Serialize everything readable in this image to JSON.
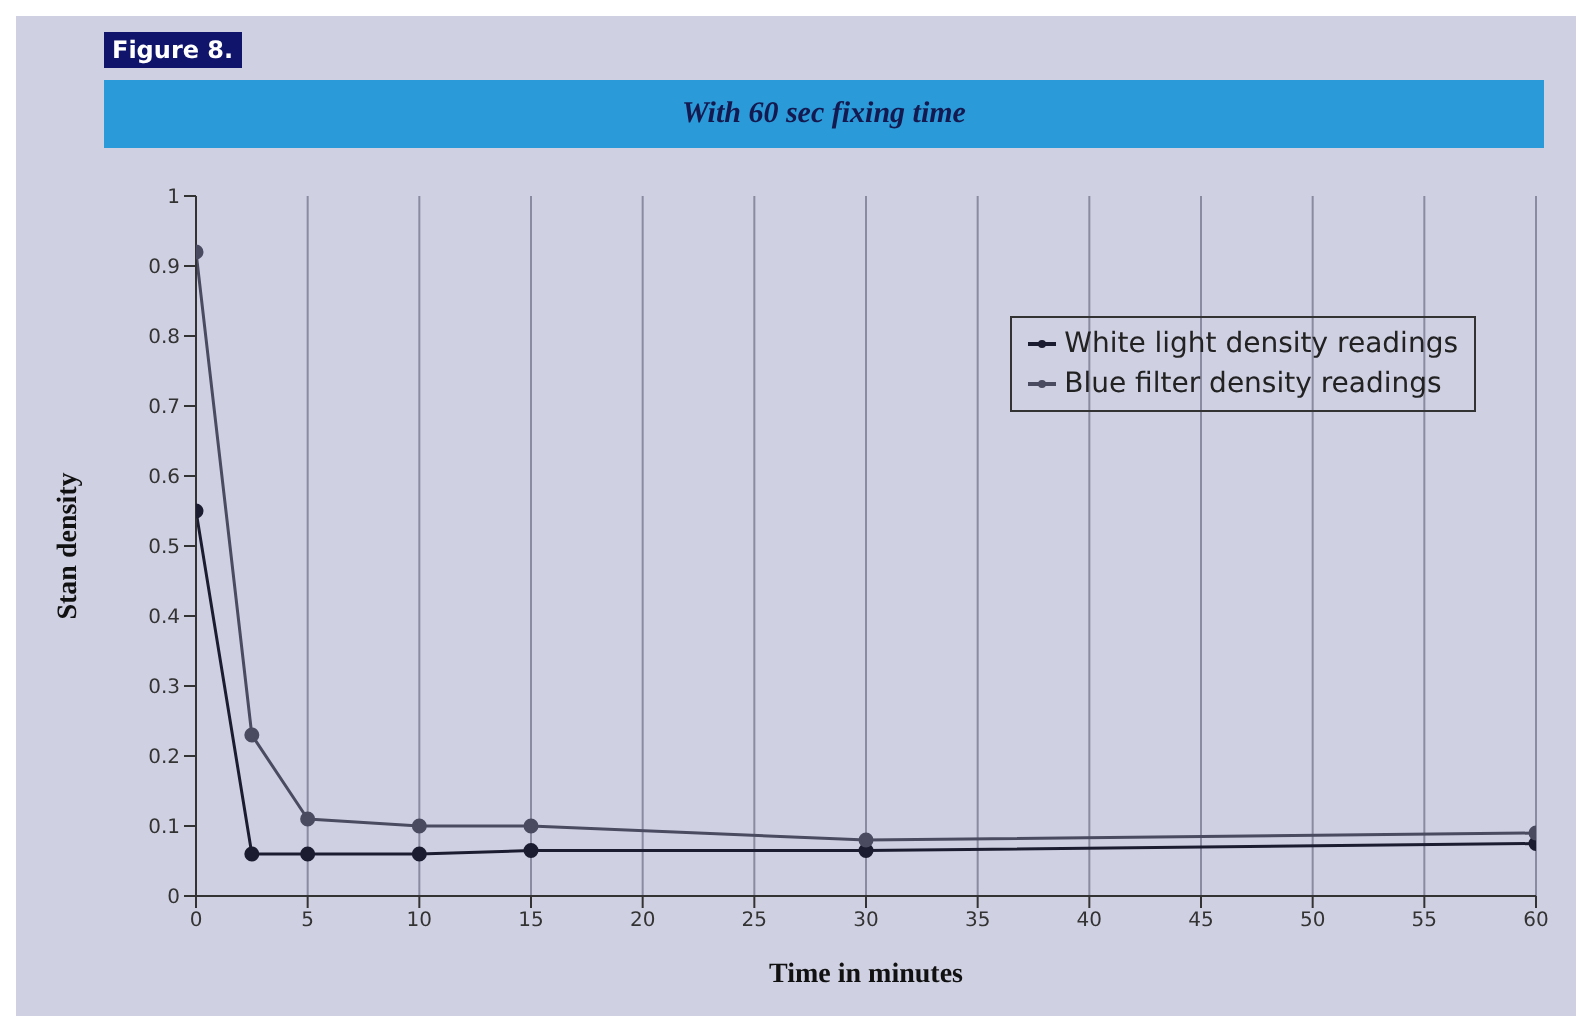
{
  "chart_data": {
    "type": "line",
    "title": "Figure 8.",
    "subtitle": "With 60 sec fixing time",
    "xlabel": "Time in minutes",
    "ylabel": "Stan density",
    "xlim": [
      0,
      60
    ],
    "xticks": [
      0,
      5,
      10,
      15,
      20,
      25,
      30,
      35,
      40,
      45,
      50,
      55,
      60
    ],
    "ylim": [
      0,
      1
    ],
    "yticks": [
      0,
      0.1,
      0.2,
      0.3,
      0.4,
      0.5,
      0.6,
      0.7,
      0.8,
      0.9,
      1
    ],
    "grid": "x",
    "legend": "top right",
    "marker": "circle",
    "line_style": "solid",
    "series": [
      {
        "name": "White light density readings",
        "color": "#1c1c30",
        "x": [
          0,
          2.5,
          5,
          10,
          15,
          30,
          60
        ],
        "values": [
          0.55,
          0.06,
          0.06,
          0.06,
          0.065,
          0.065,
          0.075
        ]
      },
      {
        "name": "Blue filter density readings",
        "color": "#4a4a60",
        "x": [
          0,
          2.5,
          5,
          10,
          15,
          30,
          60
        ],
        "values": [
          0.92,
          0.23,
          0.11,
          0.1,
          0.1,
          0.08,
          0.09
        ]
      }
    ]
  }
}
